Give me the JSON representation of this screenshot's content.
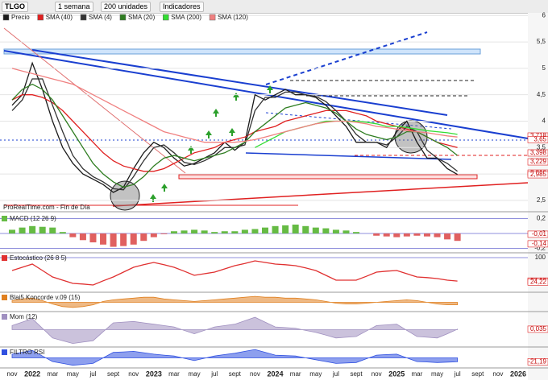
{
  "toolbar": {
    "symbol": "TLGO",
    "period": "1 semana",
    "units": "200 unidades",
    "indicators": "Indicadores"
  },
  "chart_data": [
    {
      "type": "line",
      "footer": "ProRealTime.com - Fin de Día",
      "categories": [
        "nov",
        null,
        "2022",
        null,
        "mar",
        null,
        "may",
        null,
        "jul",
        null,
        "sept",
        null,
        "nov",
        null,
        "2023",
        null,
        "mar",
        null,
        "may",
        null,
        "jul",
        null,
        "sept",
        null,
        "nov",
        null,
        "2024",
        null,
        "mar",
        null,
        "may",
        null,
        "jul",
        null,
        "sept",
        null,
        "nov",
        null,
        "2025",
        null,
        "mar",
        null,
        "may",
        null,
        "jul",
        null,
        "sept",
        null,
        "nov",
        null,
        "2026"
      ],
      "series": [
        {
          "name": "Precio",
          "color": "#1a1a1a",
          "values": [
            4.3,
            4.5,
            5.1,
            4.6,
            4.0,
            3.5,
            3.2,
            3.0,
            2.9,
            2.8,
            2.65,
            2.75,
            3.1,
            3.4,
            3.6,
            3.5,
            3.3,
            3.15,
            3.2,
            3.3,
            3.4,
            3.6,
            3.45,
            3.6,
            4.5,
            4.4,
            4.5,
            4.6,
            4.5,
            4.5,
            4.45,
            4.3,
            4.1,
            3.9,
            3.6,
            3.6,
            3.6,
            3.5,
            3.8,
            4.0,
            3.6,
            3.3,
            3.3,
            3.1,
            2.99,
            null,
            null,
            null,
            null,
            null,
            null
          ]
        },
        {
          "name": "SMA (40)",
          "color": "#e02020",
          "values": [
            4.4,
            4.5,
            4.5,
            4.45,
            4.35,
            4.2,
            4.0,
            3.8,
            3.6,
            3.4,
            3.25,
            3.15,
            3.1,
            3.05,
            3.05,
            3.1,
            3.2,
            3.3,
            3.4,
            3.45,
            3.5,
            3.6,
            3.65,
            3.7,
            3.8,
            3.85,
            3.9,
            4.0,
            4.05,
            4.1,
            4.15,
            4.2,
            4.2,
            4.2,
            4.15,
            4.1,
            4.0,
            3.95,
            3.9,
            3.85,
            3.8,
            3.7,
            3.6,
            3.55,
            3.5,
            null,
            null,
            null,
            null,
            null,
            null
          ]
        },
        {
          "name": "SMA (4)",
          "color": "#333333",
          "values": [
            4.2,
            4.4,
            4.8,
            4.8,
            4.3,
            3.8,
            3.35,
            3.1,
            2.95,
            2.85,
            2.72,
            2.7,
            2.95,
            3.25,
            3.5,
            3.55,
            3.4,
            3.22,
            3.18,
            3.25,
            3.35,
            3.5,
            3.5,
            3.55,
            4.2,
            4.45,
            4.45,
            4.55,
            4.55,
            4.5,
            4.47,
            4.37,
            4.2,
            4.0,
            3.75,
            3.6,
            3.6,
            3.55,
            3.7,
            3.9,
            3.8,
            3.45,
            3.3,
            3.2,
            3.05,
            null,
            null,
            null,
            null,
            null,
            null
          ]
        },
        {
          "name": "SMA (20)",
          "color": "#2e7d20",
          "values": [
            4.4,
            4.6,
            4.7,
            4.6,
            4.4,
            4.1,
            3.8,
            3.5,
            3.2,
            3.0,
            2.85,
            2.75,
            2.8,
            2.95,
            3.15,
            3.3,
            3.35,
            3.3,
            3.25,
            3.3,
            3.35,
            3.4,
            3.5,
            3.6,
            3.8,
            3.95,
            4.1,
            4.25,
            4.3,
            4.35,
            4.3,
            4.25,
            4.15,
            4.0,
            3.85,
            3.75,
            3.7,
            3.65,
            3.7,
            3.8,
            3.8,
            3.7,
            3.6,
            3.5,
            3.35,
            null,
            null,
            null,
            null,
            null,
            null
          ]
        },
        {
          "name": "SMA (200)",
          "color": "#33dd33",
          "values": [
            null,
            null,
            null,
            null,
            null,
            null,
            null,
            null,
            null,
            null,
            null,
            null,
            null,
            null,
            null,
            null,
            null,
            null,
            null,
            null,
            null,
            null,
            null,
            null,
            3.5,
            3.6,
            3.7,
            3.8,
            3.85,
            3.9,
            3.95,
            4.0,
            4.0,
            4.0,
            4.0,
            3.98,
            3.95,
            3.9,
            3.9,
            3.88,
            3.85,
            3.82,
            3.8,
            3.78,
            3.75,
            null,
            null,
            null,
            null,
            null,
            null
          ]
        },
        {
          "name": "SMA (120)",
          "color": "#f08080",
          "values": [
            5.0,
            4.95,
            4.9,
            4.85,
            4.8,
            4.75,
            4.7,
            4.6,
            4.5,
            4.4,
            4.3,
            4.2,
            4.1,
            4.0,
            3.9,
            3.8,
            3.75,
            3.7,
            3.65,
            3.6,
            3.6,
            3.6,
            3.6,
            3.62,
            3.65,
            3.7,
            3.75,
            3.8,
            3.85,
            3.9,
            3.95,
            3.98,
            4.0,
            4.0,
            3.98,
            3.95,
            3.9,
            3.88,
            3.85,
            3.82,
            3.8,
            3.78,
            3.75,
            3.72,
            3.7,
            null,
            null,
            null,
            null,
            null,
            null
          ]
        }
      ],
      "ylim": [
        2.3,
        6.05
      ],
      "yticks": [
        6,
        {
          "value": 5.5,
          "label": "5,5"
        },
        5,
        {
          "value": 4.5,
          "label": "4,5"
        },
        4,
        {
          "value": 3.5,
          "label": "3,5"
        },
        3,
        {
          "value": 2.5,
          "label": "2,5"
        }
      ],
      "marker_labels": [
        {
          "value": 3.718,
          "label": "3,718"
        },
        {
          "value": 3.65,
          "label": "3,65"
        },
        {
          "value": 3.398,
          "label": "3,398"
        },
        {
          "value": 3.229,
          "label": "3,229"
        },
        {
          "value": 3.016,
          "label": "3,016"
        },
        {
          "value": 2.985,
          "label": "2,985"
        }
      ]
    },
    {
      "type": "bar",
      "title": "MACD (12 26 9)",
      "color": "#66bb44",
      "values": [
        0.05,
        0.08,
        0.1,
        0.09,
        0.08,
        0.02,
        -0.05,
        -0.09,
        -0.12,
        -0.15,
        -0.18,
        -0.17,
        -0.15,
        -0.1,
        -0.05,
        -0.01,
        0.03,
        0.04,
        0.05,
        0.04,
        0.02,
        0.03,
        0.03,
        0.05,
        0.06,
        0.08,
        0.1,
        0.11,
        0.12,
        0.1,
        0.08,
        0.07,
        0.05,
        0.04,
        0.02,
        0,
        -0.03,
        -0.04,
        -0.05,
        -0.04,
        -0.03,
        -0.04,
        -0.05,
        -0.08,
        -0.1
      ],
      "ylim": [
        -0.25,
        0.25
      ],
      "yticks": [
        {
          "value": 0.2,
          "label": "0,2"
        },
        0,
        {
          "value": -0.2,
          "label": "-0,2"
        }
      ],
      "marker_labels": [
        {
          "value": -0.01,
          "label": "-0,01"
        },
        {
          "value": -0.14,
          "label": "-0,14"
        }
      ]
    },
    {
      "type": "line",
      "title": "Estocástico (26 8 5)",
      "color": "#e03030",
      "values": [
        60,
        70,
        80,
        60,
        40,
        30,
        20,
        18,
        15,
        28,
        40,
        55,
        70,
        78,
        85,
        78,
        70,
        58,
        45,
        50,
        55,
        65,
        75,
        82,
        90,
        85,
        80,
        78,
        75,
        68,
        60,
        45,
        30,
        30,
        30,
        42,
        55,
        58,
        60,
        50,
        40,
        38,
        35,
        30,
        27.18
      ],
      "ylim": [
        -5,
        110
      ],
      "yticks": [
        100
      ],
      "marker_labels": [
        {
          "value": 27.18,
          "label": "27,18"
        },
        {
          "value": 24.22,
          "label": "24,22"
        }
      ]
    },
    {
      "type": "area",
      "title": "Blai5 Koncorde v.09 (15)",
      "color": "#e08020",
      "values": [
        0.2,
        0.4,
        0.5,
        0.2,
        -0.2,
        -0.5,
        -0.6,
        -0.5,
        -0.3,
        0.1,
        0.3,
        0.4,
        0.5,
        0.6,
        0.6,
        0.4,
        0.3,
        0.2,
        0.1,
        0.2,
        0.3,
        0.4,
        0.5,
        0.6,
        0.7,
        0.6,
        0.6,
        0.5,
        0.5,
        0.4,
        0.3,
        0.1,
        -0.1,
        -0.2,
        -0.2,
        -0.1,
        0,
        0.1,
        0.2,
        0.3,
        0.2,
        0,
        -0.2,
        -0.3,
        -0.3
      ],
      "ylim": [
        -1,
        1
      ]
    },
    {
      "type": "area",
      "title": "Mom (12)",
      "color": "#a090c0",
      "values": [
        0.3,
        0.55,
        0.8,
        0.1,
        -0.6,
        -0.8,
        -1.0,
        -0.9,
        -0.8,
        -0.15,
        0.5,
        0.55,
        0.6,
        0.5,
        0.4,
        0.3,
        0.2,
        -0.05,
        -0.3,
        -0.05,
        0.2,
        0.3,
        0.4,
        0.65,
        0.9,
        0.55,
        0.2,
        0.15,
        0.1,
        -0.05,
        -0.2,
        -0.4,
        -0.6,
        -0.55,
        -0.5,
        -0.1,
        0.3,
        0.35,
        0.4,
        -0.05,
        -0.5,
        -0.55,
        -0.6,
        -0.3,
        0.035
      ],
      "ylim": [
        -1.2,
        1.2
      ],
      "marker_labels": [
        {
          "value": 0.035,
          "label": "0,035"
        }
      ]
    },
    {
      "type": "area",
      "title": "FILTRO RSI",
      "color": "#3050e0",
      "values": [
        20,
        30,
        40,
        10,
        -20,
        -30,
        -40,
        -35,
        -30,
        0,
        30,
        32,
        35,
        28,
        20,
        15,
        10,
        -2,
        -15,
        -2,
        10,
        18,
        25,
        35,
        45,
        30,
        15,
        12,
        10,
        0,
        -10,
        -20,
        -30,
        -28,
        -25,
        -5,
        15,
        18,
        20,
        0,
        -20,
        -22,
        -25,
        -23,
        -21.19
      ],
      "ylim": [
        -50,
        50
      ],
      "marker_labels": [
        {
          "value": -21.19,
          "label": "-21,19"
        }
      ]
    }
  ]
}
